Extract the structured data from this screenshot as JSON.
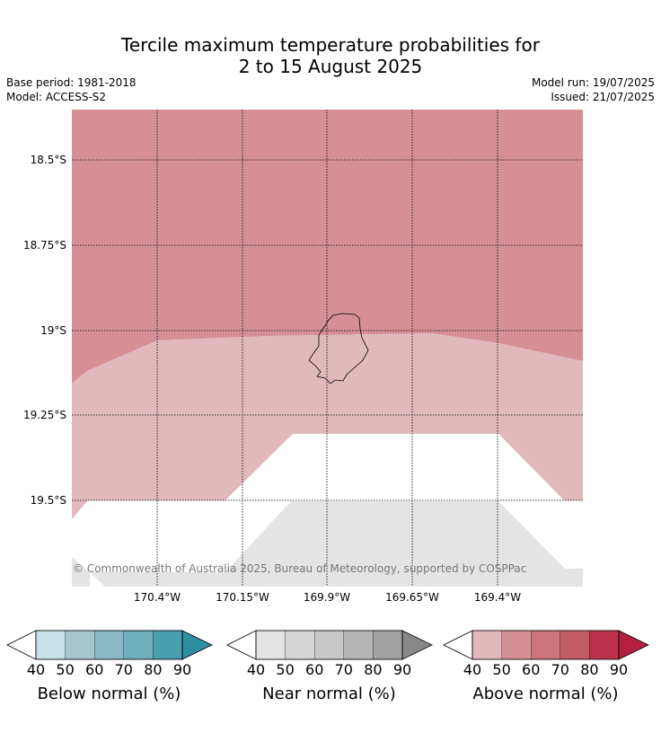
{
  "title_line1": "Tercile maximum temperature probabilities for",
  "title_line2": "2 to 15 August 2025",
  "base_period": "Base period: 1981-2018",
  "model": "Model: ACCESS-S2",
  "model_run": "Model run: 19/07/2025",
  "issued": "Issued: 21/07/2025",
  "latitude_labels": [
    "18.5°S",
    "18.75°S",
    "19°S",
    "19.25°S",
    "19.5°S"
  ],
  "longitude_labels": [
    "170.4°W",
    "170.15°W",
    "169.9°W",
    "169.65°W",
    "169.4°W"
  ],
  "copyright": "© Commonwealth of Australia 2025, Bureau of Meteorology, supported by COSPPac",
  "colorbars": [
    {
      "title": "Below normal (%)",
      "ticks": [
        "40",
        "50",
        "60",
        "70",
        "80",
        "90"
      ],
      "colors": [
        "#c8e1e6",
        "#a6c6cb",
        "#8ab8c4",
        "#6eaebd",
        "#479fb0",
        "#2e8fa3"
      ]
    },
    {
      "title": "Near normal (%)",
      "ticks": [
        "40",
        "50",
        "60",
        "70",
        "80",
        "90"
      ],
      "colors": [
        "#e4e4e4",
        "#d6d6d6",
        "#c8c8c8",
        "#b6b6b6",
        "#a3a3a3",
        "#888888"
      ]
    },
    {
      "title": "Above normal (%)",
      "ticks": [
        "40",
        "50",
        "60",
        "70",
        "80",
        "90"
      ],
      "colors": [
        "#e1b8bc",
        "#d58f95",
        "#cc747b",
        "#c45a64",
        "#bd324c",
        "#b51f40"
      ]
    }
  ],
  "map_colors": {
    "above_50": "#d58f95",
    "above_40": "#e1b8bc",
    "near_40": "#e4e4e4",
    "background": "#ffffff"
  }
}
